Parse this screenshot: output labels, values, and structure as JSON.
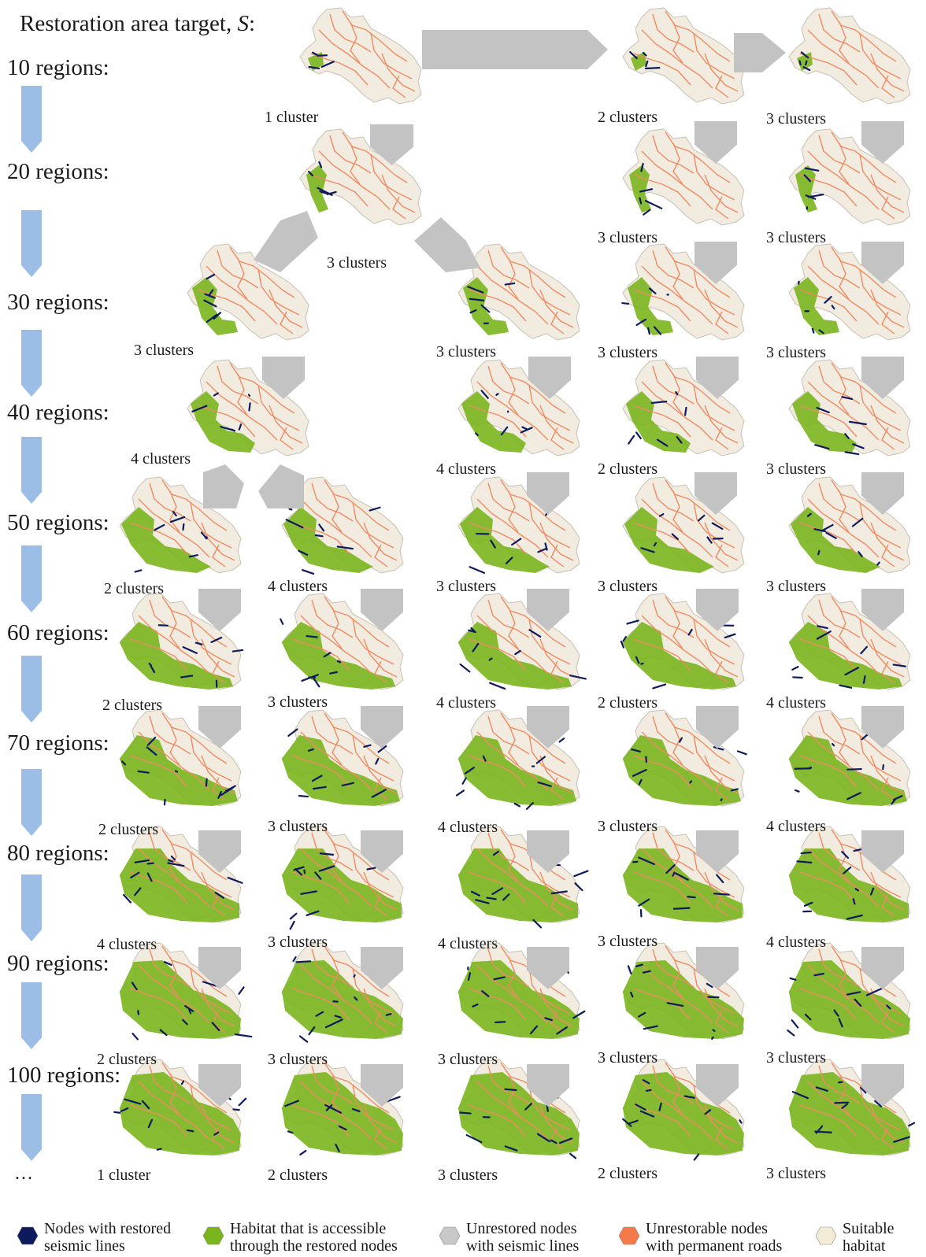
{
  "title": {
    "text": "Restoration area target, ",
    "symbol": "S",
    "suffix": ":"
  },
  "rows": [
    {
      "label": "10 regions:"
    },
    {
      "label": "20 regions:"
    },
    {
      "label": "30 regions:"
    },
    {
      "label": "40 regions:"
    },
    {
      "label": "50 regions:"
    },
    {
      "label": "60 regions:"
    },
    {
      "label": "70 regions:"
    },
    {
      "label": "80 regions:"
    },
    {
      "label": "90 regions:"
    },
    {
      "label": "100 regions:"
    }
  ],
  "ellipsis": "…",
  "maps": [
    {
      "label": "1 cluster",
      "restored": 1
    },
    {
      "label": "2 clusters",
      "restored": 1
    },
    {
      "label": "3 clusters",
      "restored": 1
    },
    {
      "label": "3 clusters",
      "restored": 2
    },
    {
      "label": "3 clusters",
      "restored": 2
    },
    {
      "label": "3 clusters",
      "restored": 2
    },
    {
      "label": "3 clusters",
      "restored": 3
    },
    {
      "label": "3 clusters",
      "restored": 3
    },
    {
      "label": "3 clusters",
      "restored": 3
    },
    {
      "label": "3 clusters",
      "restored": 3
    },
    {
      "label": "4 clusters",
      "restored": 4
    },
    {
      "label": "4 clusters",
      "restored": 4
    },
    {
      "label": "2 clusters",
      "restored": 4
    },
    {
      "label": "3 clusters",
      "restored": 4
    },
    {
      "label": "2 clusters",
      "restored": 5
    },
    {
      "label": "4 clusters",
      "restored": 5
    },
    {
      "label": "3 clusters",
      "restored": 5
    },
    {
      "label": "3 clusters",
      "restored": 5
    },
    {
      "label": "3 clusters",
      "restored": 5
    },
    {
      "label": "2 clusters",
      "restored": 6
    },
    {
      "label": "3 clusters",
      "restored": 6
    },
    {
      "label": "4 clusters",
      "restored": 6
    },
    {
      "label": "2 clusters",
      "restored": 6
    },
    {
      "label": "4 clusters",
      "restored": 6
    },
    {
      "label": "2 clusters",
      "restored": 7
    },
    {
      "label": "3 clusters",
      "restored": 7
    },
    {
      "label": "4 clusters",
      "restored": 7
    },
    {
      "label": "3 clusters",
      "restored": 7
    },
    {
      "label": "4 clusters",
      "restored": 7
    },
    {
      "label": "4 clusters",
      "restored": 8
    },
    {
      "label": "3 clusters",
      "restored": 8
    },
    {
      "label": "4 clusters",
      "restored": 8
    },
    {
      "label": "3 clusters",
      "restored": 8
    },
    {
      "label": "4 clusters",
      "restored": 8
    },
    {
      "label": "2 clusters",
      "restored": 9
    },
    {
      "label": "3 clusters",
      "restored": 9
    },
    {
      "label": "3 clusters",
      "restored": 9
    },
    {
      "label": "3 clusters",
      "restored": 9
    },
    {
      "label": "3 clusters",
      "restored": 9
    },
    {
      "label": "1 cluster",
      "restored": 10
    },
    {
      "label": "2 clusters",
      "restored": 10
    },
    {
      "label": "3 clusters",
      "restored": 10
    },
    {
      "label": "2 clusters",
      "restored": 10
    },
    {
      "label": "3 clusters",
      "restored": 10
    }
  ],
  "legend": [
    {
      "text": "Nodes with restored\nseismic lines",
      "color": "#0d1a5c",
      "icon": "hexagon-icon"
    },
    {
      "text": "Habitat that is accessible\nthrough the restored nodes",
      "color": "#7ab51d",
      "icon": "hexagon-icon"
    },
    {
      "text": "Unrestored nodes\nwith seismic lines",
      "color": "#c8c8c8",
      "icon": "hexagon-icon"
    },
    {
      "text": "Unrestorable nodes\nwith permanent roads",
      "color": "#f47a4a",
      "icon": "hexagon-icon"
    },
    {
      "text": "Suitable\nhabitat",
      "color": "#f2ecd6",
      "icon": "hexagon-icon"
    }
  ],
  "colors": {
    "row_arrow": "#9bbde6",
    "flow_arrow": "#c3c3c3",
    "roads": "#f08a63",
    "land": "#f1ecdf",
    "land_outline": "#c7c0b3"
  }
}
